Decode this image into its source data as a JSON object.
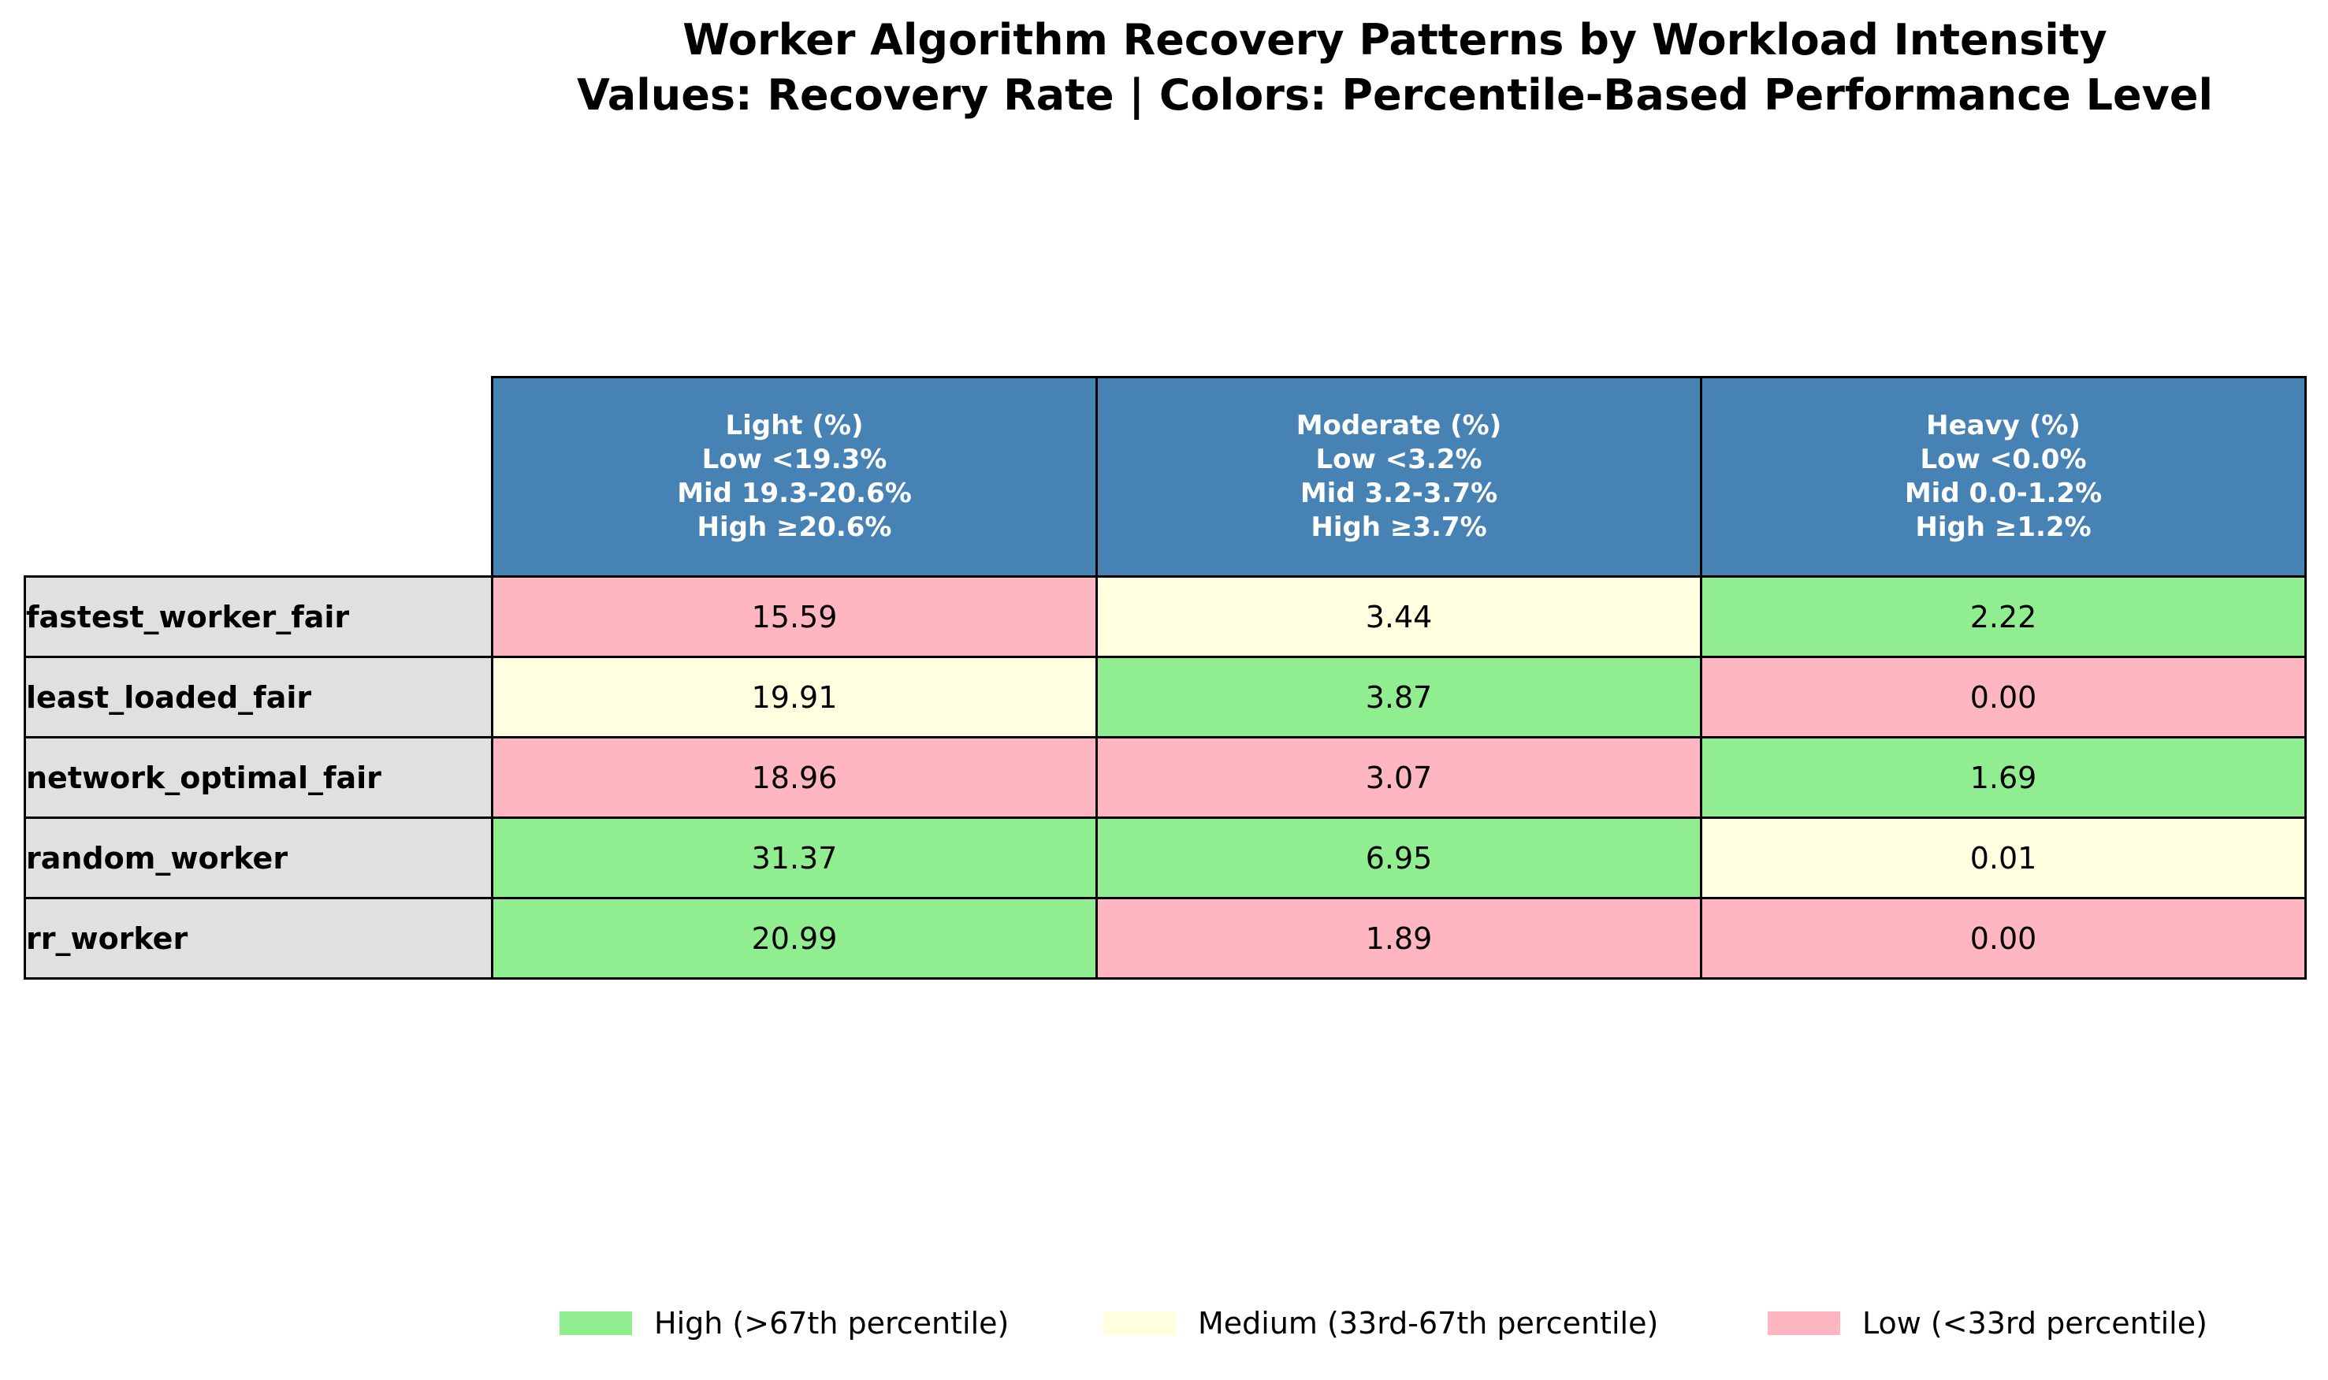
{
  "colors": {
    "header_bg": "#4682b4",
    "row_header_bg": "#e0e0e0",
    "high": "#90ee90",
    "medium": "#ffffe0",
    "low": "#ffb6c1"
  },
  "chart_data": {
    "type": "table",
    "title": "Worker Algorithm Recovery Patterns by Workload Intensity",
    "subtitle": "Values: Recovery Rate | Colors: Percentile-Based Performance Level",
    "columns": [
      {
        "name": "Light (%)",
        "low": "Low <19.3%",
        "mid": "Mid 19.3-20.6%",
        "high": "High ≥20.6%"
      },
      {
        "name": "Moderate (%)",
        "low": "Low <3.2%",
        "mid": "Mid 3.2-3.7%",
        "high": "High ≥3.7%"
      },
      {
        "name": "Heavy (%)",
        "low": "Low <0.0%",
        "mid": "Mid 0.0-1.2%",
        "high": "High ≥1.2%"
      }
    ],
    "rows": [
      {
        "name": "fastest_worker_fair",
        "values": [
          "15.59",
          "3.44",
          "2.22"
        ],
        "levels": [
          "low",
          "medium",
          "high"
        ]
      },
      {
        "name": "least_loaded_fair",
        "values": [
          "19.91",
          "3.87",
          "0.00"
        ],
        "levels": [
          "medium",
          "high",
          "low"
        ]
      },
      {
        "name": "network_optimal_fair",
        "values": [
          "18.96",
          "3.07",
          "1.69"
        ],
        "levels": [
          "low",
          "low",
          "high"
        ]
      },
      {
        "name": "random_worker",
        "values": [
          "31.37",
          "6.95",
          "0.01"
        ],
        "levels": [
          "high",
          "high",
          "medium"
        ]
      },
      {
        "name": "rr_worker",
        "values": [
          "20.99",
          "1.89",
          "0.00"
        ],
        "levels": [
          "high",
          "low",
          "low"
        ]
      }
    ],
    "legend": [
      {
        "label": "High (>67th percentile)",
        "level": "high"
      },
      {
        "label": "Medium (33rd-67th percentile)",
        "level": "medium"
      },
      {
        "label": "Low (<33rd percentile)",
        "level": "low"
      }
    ],
    "legend_position": "bottom"
  }
}
